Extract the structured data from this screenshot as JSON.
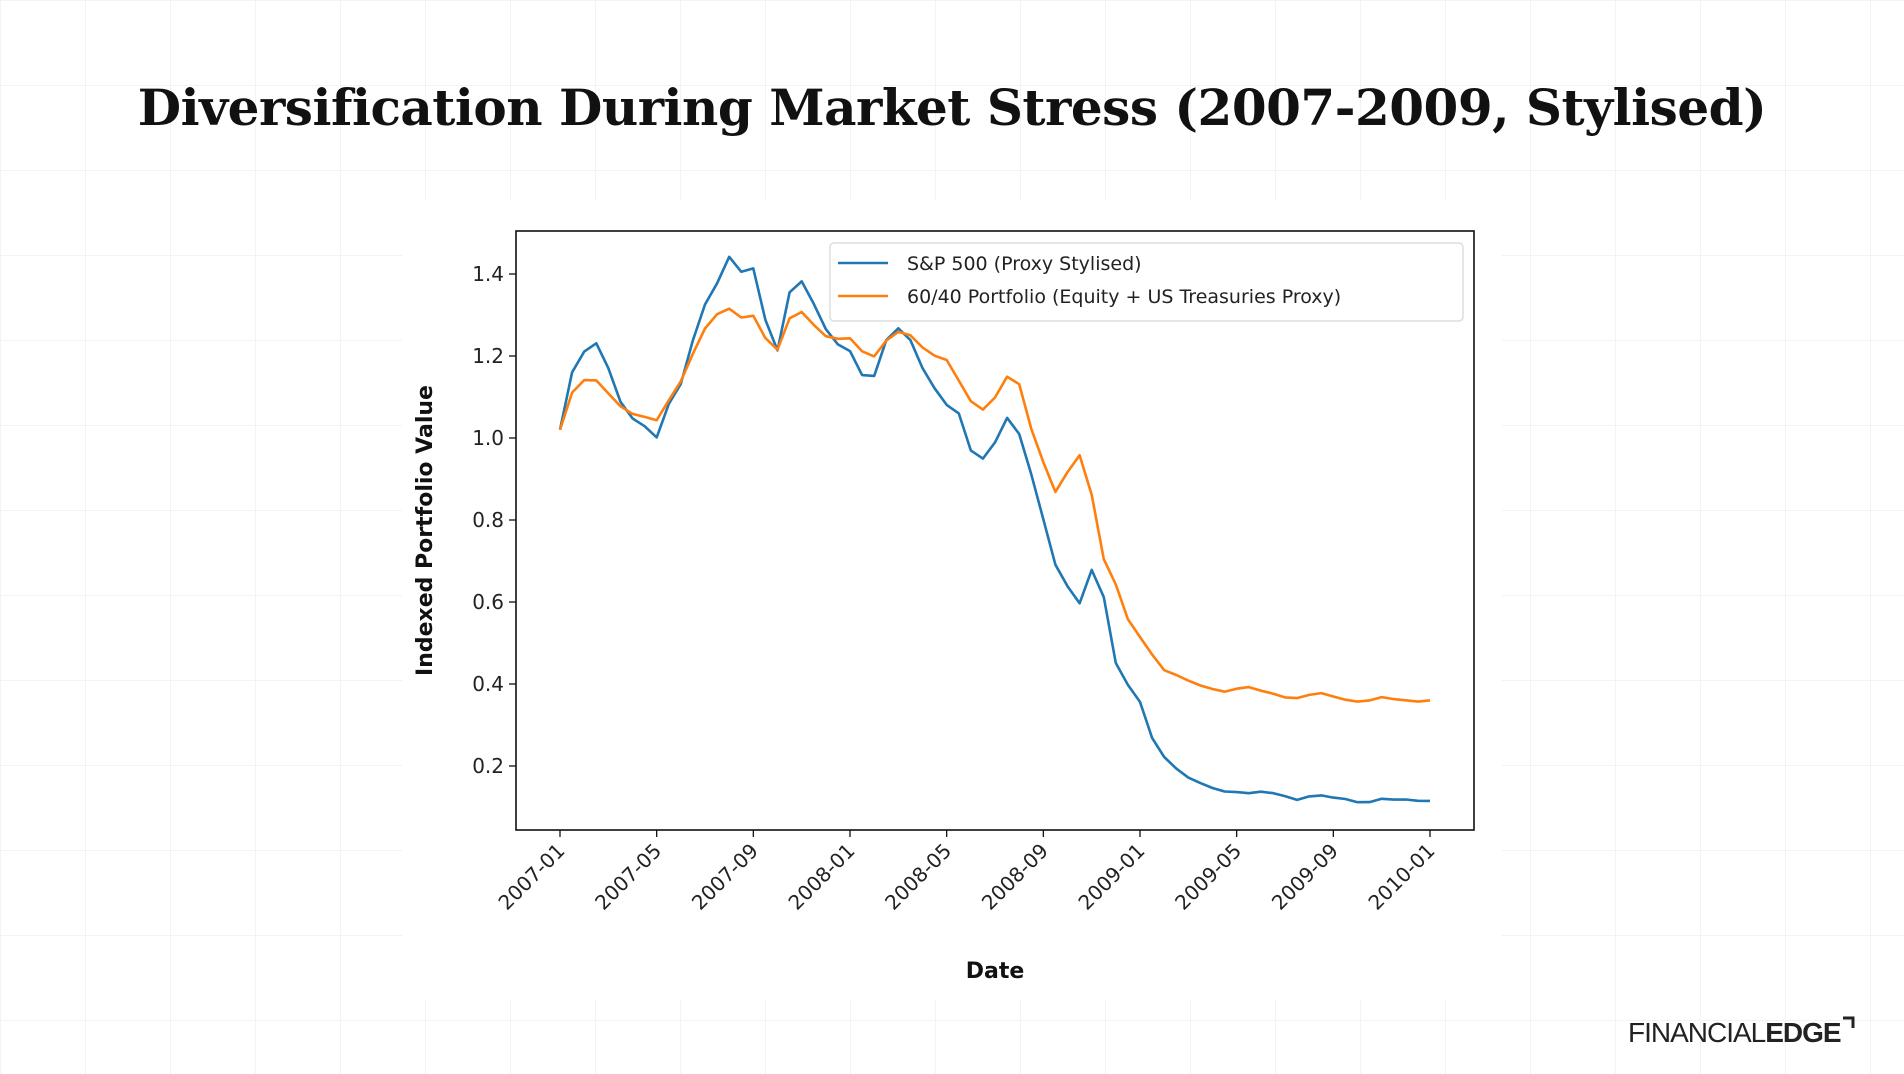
{
  "title": "Diversification During Market Stress (2007-2009, Stylised)",
  "logo": {
    "part1": "FINANCIAL",
    "part2": "EDGE"
  },
  "chart_data": {
    "type": "line",
    "title": "Diversification During Market Stress (2007-2009, Stylised)",
    "xlabel": "Date",
    "ylabel": "Indexed Portfolio Value",
    "ylim": [
      0.05,
      1.5
    ],
    "yticks": [
      0.2,
      0.4,
      0.6,
      0.8,
      1.0,
      1.2,
      1.4
    ],
    "ytick_labels": [
      "0.2",
      "0.4",
      "0.6",
      "0.8",
      "1.0",
      "1.2",
      "1.4"
    ],
    "xticks": [
      "2007-01",
      "2007-05",
      "2007-09",
      "2008-01",
      "2008-05",
      "2008-09",
      "2009-01",
      "2009-05",
      "2009-09",
      "2010-01"
    ],
    "legend_placement": "top-right",
    "grid": false,
    "x_start": "2007-01-01",
    "x_step": "half-month",
    "series": [
      {
        "name": "S&P 500 (Proxy Stylised)",
        "color": "#1f77b4",
        "values": [
          1.02,
          1.15,
          1.2,
          1.23,
          1.18,
          1.1,
          1.05,
          1.02,
          0.99,
          1.08,
          1.14,
          1.25,
          1.33,
          1.37,
          1.43,
          1.4,
          1.42,
          1.3,
          1.22,
          1.35,
          1.37,
          1.32,
          1.27,
          1.24,
          1.22,
          1.15,
          1.14,
          1.23,
          1.27,
          1.25,
          1.18,
          1.12,
          1.07,
          1.05,
          0.97,
          0.96,
          1.0,
          1.05,
          1.0,
          0.9,
          0.8,
          0.7,
          0.65,
          0.6,
          0.67,
          0.6,
          0.45,
          0.4,
          0.36,
          0.27,
          0.22,
          0.19,
          0.17,
          0.16,
          0.15,
          0.14,
          0.135,
          0.13,
          0.135,
          0.135,
          0.13,
          0.12,
          0.125,
          0.125,
          0.12,
          0.12,
          0.115,
          0.115,
          0.12,
          0.115,
          0.115,
          0.115,
          0.115
        ]
      },
      {
        "name": "60/40 Portfolio (Equity + US Treasuries Proxy)",
        "color": "#ff7f0e",
        "values": [
          1.02,
          1.1,
          1.14,
          1.15,
          1.12,
          1.08,
          1.05,
          1.04,
          1.04,
          1.1,
          1.15,
          1.21,
          1.26,
          1.29,
          1.31,
          1.3,
          1.31,
          1.25,
          1.21,
          1.28,
          1.3,
          1.28,
          1.26,
          1.25,
          1.24,
          1.2,
          1.19,
          1.24,
          1.27,
          1.26,
          1.22,
          1.19,
          1.18,
          1.14,
          1.1,
          1.08,
          1.1,
          1.14,
          1.12,
          1.02,
          0.95,
          0.88,
          0.92,
          0.95,
          0.85,
          0.7,
          0.65,
          0.57,
          0.52,
          0.47,
          0.43,
          0.42,
          0.41,
          0.4,
          0.39,
          0.38,
          0.385,
          0.39,
          0.385,
          0.38,
          0.37,
          0.365,
          0.37,
          0.375,
          0.37,
          0.365,
          0.36,
          0.36,
          0.365,
          0.36,
          0.36,
          0.36,
          0.36
        ]
      }
    ]
  }
}
